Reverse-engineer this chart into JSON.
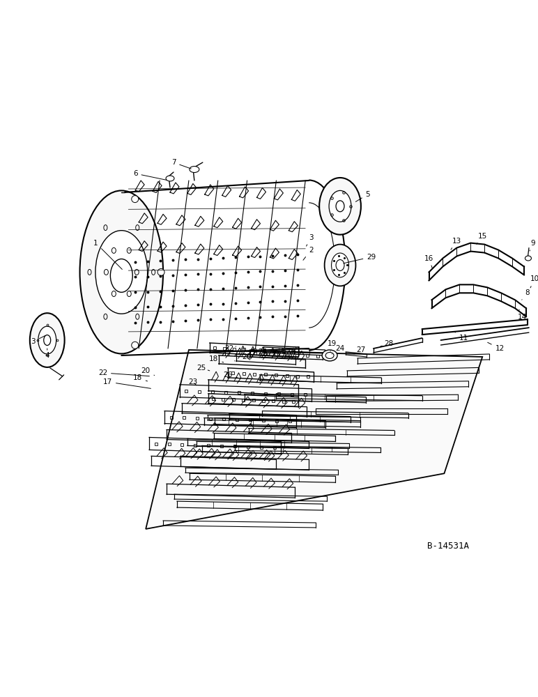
{
  "bg_color": "#ffffff",
  "line_color": "#000000",
  "figure_id": "B-14531A",
  "fig_width": 7.72,
  "fig_height": 10.0
}
